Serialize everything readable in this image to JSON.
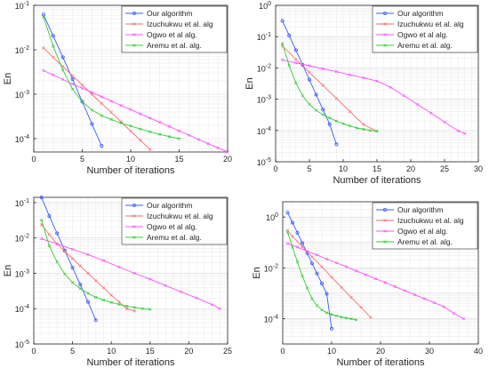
{
  "chart_data": [
    {
      "type": "line",
      "ylabel": "En",
      "xlabel": "Number of iterations",
      "y_scale": "log",
      "xlim": [
        0,
        20
      ],
      "ylim_exp": [
        -4.3,
        -1.0
      ],
      "xticks": [
        "0",
        "5",
        "10",
        "15",
        "20"
      ],
      "yticks": [
        "10^-4",
        "10^-3",
        "10^-2",
        "10^-1"
      ],
      "grid": true,
      "legend_position": "top-right",
      "series": [
        {
          "name": "Our algorithm",
          "color": "#3b5bff",
          "marker": "circle",
          "x": [
            1,
            2,
            3,
            4,
            5,
            6,
            7
          ],
          "y": [
            0.062,
            0.0205,
            0.0068,
            0.0022,
            0.00068,
            0.000215,
            6.85e-05
          ]
        },
        {
          "name": "Izuchukwu et al. alg",
          "color": "#ff6a6a",
          "marker": "x",
          "x": [
            1,
            2,
            3,
            4,
            5,
            6,
            7,
            8,
            9,
            10,
            11,
            12
          ],
          "y": [
            0.011,
            0.0068,
            0.0042,
            0.0026,
            0.00162,
            0.001,
            0.00062,
            0.00039,
            0.00024,
            0.000148,
            9.2e-05,
            5.7e-05
          ]
        },
        {
          "name": "Ogwo et al alg.",
          "color": "#ff50ff",
          "marker": "x",
          "x": [
            1,
            2,
            3,
            4,
            5,
            6,
            7,
            8,
            9,
            10,
            11,
            12,
            13,
            14,
            15,
            16,
            17,
            18,
            19,
            20
          ],
          "y": [
            0.0034,
            0.0027,
            0.00215,
            0.0017,
            0.00137,
            0.0011,
            0.00088,
            0.0007,
            0.00056,
            0.00045,
            0.00036,
            0.00029,
            0.000233,
            0.000187,
            0.00015,
            0.00012,
            9.6e-05,
            7.7e-05,
            6.2e-05,
            5e-05
          ]
        },
        {
          "name": "Aremu et al. alg.",
          "color": "#33cc33",
          "marker": "x",
          "x": [
            1,
            2,
            3,
            4,
            5,
            6,
            7,
            8,
            9,
            10,
            11,
            12,
            13,
            14,
            15
          ],
          "y": [
            0.055,
            0.012,
            0.0035,
            0.0013,
            0.00068,
            0.00044,
            0.00033,
            0.00027,
            0.000225,
            0.000192,
            0.000165,
            0.000143,
            0.000125,
            0.000111,
            0.0001
          ]
        }
      ]
    },
    {
      "type": "line",
      "ylabel": "En",
      "xlabel": "Number of iterations",
      "y_scale": "log",
      "xlim": [
        0,
        30
      ],
      "ylim_exp": [
        -5,
        0
      ],
      "xticks": [
        "0",
        "5",
        "10",
        "15",
        "20",
        "25",
        "30"
      ],
      "yticks": [
        "10^-5",
        "10^-4",
        "10^-3",
        "10^-2",
        "10^-1",
        "10^0"
      ],
      "grid": true,
      "legend_position": "top-right",
      "series": [
        {
          "name": "Our algorithm",
          "color": "#3b5bff",
          "marker": "circle",
          "x": [
            1,
            2,
            3,
            4,
            5,
            6,
            7,
            8,
            9
          ],
          "y": [
            0.32,
            0.11,
            0.037,
            0.0125,
            0.0042,
            0.0014,
            0.00047,
            0.000158,
            3.6e-05
          ]
        },
        {
          "name": "Izuchukwu et al. alg",
          "color": "#ff6a6a",
          "marker": "x",
          "x": [
            1,
            3,
            5,
            7,
            9,
            11,
            13,
            15
          ],
          "y": [
            0.05,
            0.019,
            0.0072,
            0.0028,
            0.00106,
            0.0004,
            0.000155,
            9.5e-05
          ]
        },
        {
          "name": "Ogwo et al alg.",
          "color": "#ff50ff",
          "marker": "x",
          "x": [
            1,
            3,
            5,
            7,
            9,
            11,
            13,
            15,
            17,
            19,
            21,
            23,
            25,
            27,
            28
          ],
          "y": [
            0.018,
            0.0145,
            0.0117,
            0.0094,
            0.0076,
            0.006,
            0.0048,
            0.0038,
            0.0024,
            0.0013,
            0.00068,
            0.00036,
            0.000185,
            9.8e-05,
            8e-05
          ]
        },
        {
          "name": "Aremu et al. alg.",
          "color": "#33cc33",
          "marker": "x",
          "x": [
            1,
            2,
            3,
            4,
            5,
            6,
            7,
            8,
            9,
            10,
            11,
            12,
            13,
            14,
            15
          ],
          "y": [
            0.06,
            0.012,
            0.0033,
            0.0013,
            0.00068,
            0.00044,
            0.00032,
            0.00025,
            0.0002,
            0.000165,
            0.00014,
            0.00012,
            0.00011,
            0.0001,
            9.5e-05
          ]
        }
      ]
    },
    {
      "type": "line",
      "ylabel": "En",
      "xlabel": "Number of iterations",
      "y_scale": "log",
      "xlim": [
        0,
        25
      ],
      "ylim_exp": [
        -5,
        -0.85
      ],
      "xticks": [
        "0",
        "5",
        "10",
        "15",
        "20",
        "25"
      ],
      "yticks": [
        "10^-5",
        "10^-4",
        "10^-3",
        "10^-2",
        "10^-1"
      ],
      "grid": true,
      "legend_position": "top-right",
      "series": [
        {
          "name": "Our algorithm",
          "color": "#3b5bff",
          "marker": "circle",
          "x": [
            1,
            2,
            3,
            4,
            5,
            6,
            7,
            8
          ],
          "y": [
            0.14,
            0.042,
            0.0135,
            0.0044,
            0.00145,
            0.00048,
            0.000155,
            4.7e-05
          ]
        },
        {
          "name": "Izuchukwu et al. alg",
          "color": "#ff6a6a",
          "marker": "x",
          "x": [
            1,
            2,
            3,
            4,
            5,
            6,
            7,
            8,
            9,
            10,
            11,
            12,
            13
          ],
          "y": [
            0.024,
            0.0125,
            0.0068,
            0.0042,
            0.0026,
            0.00162,
            0.001,
            0.00062,
            0.00039,
            0.00024,
            0.000155,
            0.0001,
            8.6e-05
          ]
        },
        {
          "name": "Ogwo et al alg.",
          "color": "#ff50ff",
          "marker": "x",
          "x": [
            1,
            3,
            5,
            7,
            9,
            11,
            13,
            15,
            17,
            19,
            21,
            23,
            24
          ],
          "y": [
            0.0095,
            0.0068,
            0.0048,
            0.0034,
            0.0023,
            0.0015,
            0.001,
            0.00068,
            0.00045,
            0.0003,
            0.0002,
            0.00013,
            0.0001
          ]
        },
        {
          "name": "Aremu et al. alg.",
          "color": "#33cc33",
          "marker": "x",
          "x": [
            1,
            2,
            3,
            4,
            5,
            6,
            7,
            8,
            9,
            10,
            11,
            12,
            13,
            14,
            15
          ],
          "y": [
            0.032,
            0.006,
            0.0021,
            0.00095,
            0.00055,
            0.00037,
            0.00027,
            0.00021,
            0.000175,
            0.00015,
            0.000132,
            0.000118,
            0.000108,
            0.0001,
            9.5e-05
          ]
        }
      ]
    },
    {
      "type": "line",
      "ylabel": "En",
      "xlabel": "Number of iterations",
      "y_scale": "log",
      "xlim": [
        0,
        40
      ],
      "ylim_exp": [
        -5,
        0.6
      ],
      "xticks": [
        "0",
        "10",
        "20",
        "30",
        "40"
      ],
      "yticks": [
        "10^-4",
        "10^-2",
        "10^0"
      ],
      "grid": true,
      "legend_position": "top-right",
      "series": [
        {
          "name": "Our algorithm",
          "color": "#3b5bff",
          "marker": "circle",
          "x": [
            1,
            2,
            3,
            4,
            5,
            6,
            7,
            8,
            9,
            10
          ],
          "y": [
            1.5,
            0.6,
            0.24,
            0.095,
            0.038,
            0.015,
            0.006,
            0.0024,
            0.00095,
            4e-05
          ]
        },
        {
          "name": "Izuchukwu et al. alg",
          "color": "#ff6a6a",
          "marker": "x",
          "x": [
            1,
            2,
            4,
            6,
            8,
            10,
            12,
            14,
            16,
            18
          ],
          "y": [
            0.3,
            0.17,
            0.068,
            0.027,
            0.011,
            0.0043,
            0.0017,
            0.00068,
            0.00028,
            0.00011
          ]
        },
        {
          "name": "Ogwo et al alg.",
          "color": "#ff50ff",
          "marker": "x",
          "x": [
            1,
            3,
            5,
            7,
            9,
            11,
            13,
            15,
            17,
            19,
            21,
            23,
            25,
            27,
            29,
            31,
            33,
            35,
            37
          ],
          "y": [
            0.09,
            0.065,
            0.045,
            0.032,
            0.022,
            0.0155,
            0.011,
            0.0076,
            0.0053,
            0.0037,
            0.0026,
            0.0018,
            0.00125,
            0.00087,
            0.0006,
            0.00042,
            0.00029,
            0.00016,
            0.0001
          ]
        },
        {
          "name": "Aremu et al. alg.",
          "color": "#33cc33",
          "marker": "x",
          "x": [
            1,
            2,
            3,
            4,
            5,
            6,
            7,
            8,
            9,
            10,
            11,
            12,
            13,
            14,
            15
          ],
          "y": [
            0.25,
            0.065,
            0.017,
            0.0048,
            0.0016,
            0.0006,
            0.00033,
            0.00022,
            0.00017,
            0.000145,
            0.000128,
            0.000115,
            0.000105,
            9.8e-05,
            9e-05
          ]
        }
      ]
    }
  ]
}
